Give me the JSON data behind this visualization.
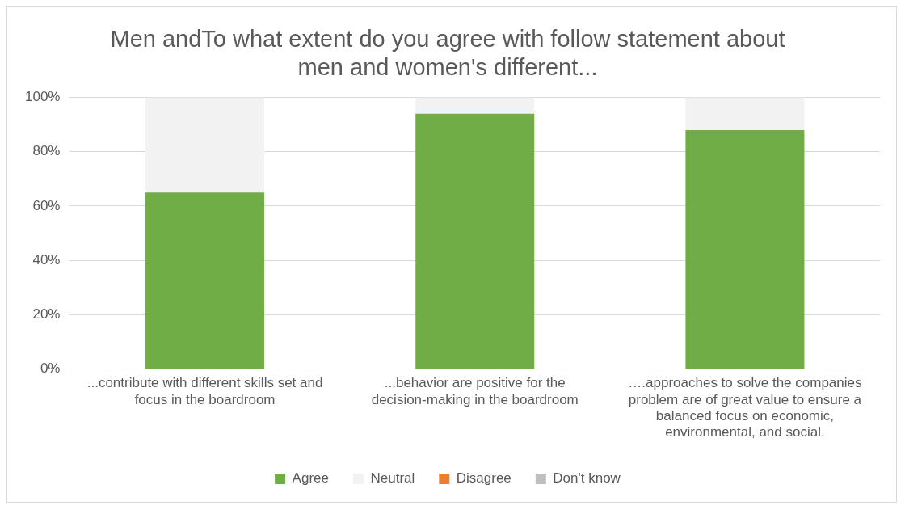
{
  "chart_data": {
    "type": "bar",
    "stacked": true,
    "title": "Men andTo what extent do you agree with follow statement about men and women's different...",
    "categories": [
      "...contribute with different skills set and focus in the boardroom",
      "...behavior are positive for the decision-making in the boardroom",
      "….approaches to solve the companies problem are of great value to ensure a balanced focus on economic, environmental, and social."
    ],
    "series": [
      {
        "name": "Agree",
        "color": "#70ad47",
        "values": [
          65,
          94,
          88
        ]
      },
      {
        "name": "Neutral",
        "color": "#f2f2f2",
        "values": [
          35,
          6,
          12
        ]
      },
      {
        "name": "Disagree",
        "color": "#ed7d31",
        "values": [
          0,
          0,
          0
        ]
      },
      {
        "name": "Don't know",
        "color": "#bfbfbf",
        "values": [
          0,
          0,
          0
        ]
      }
    ],
    "ylim": [
      0,
      100
    ],
    "yticks": [
      {
        "value": 0,
        "label": "0%"
      },
      {
        "value": 20,
        "label": "20%"
      },
      {
        "value": 40,
        "label": "40%"
      },
      {
        "value": 60,
        "label": "60%"
      },
      {
        "value": 80,
        "label": "80%"
      },
      {
        "value": 100,
        "label": "100%"
      }
    ],
    "grid": "y",
    "legend": "bottom"
  }
}
